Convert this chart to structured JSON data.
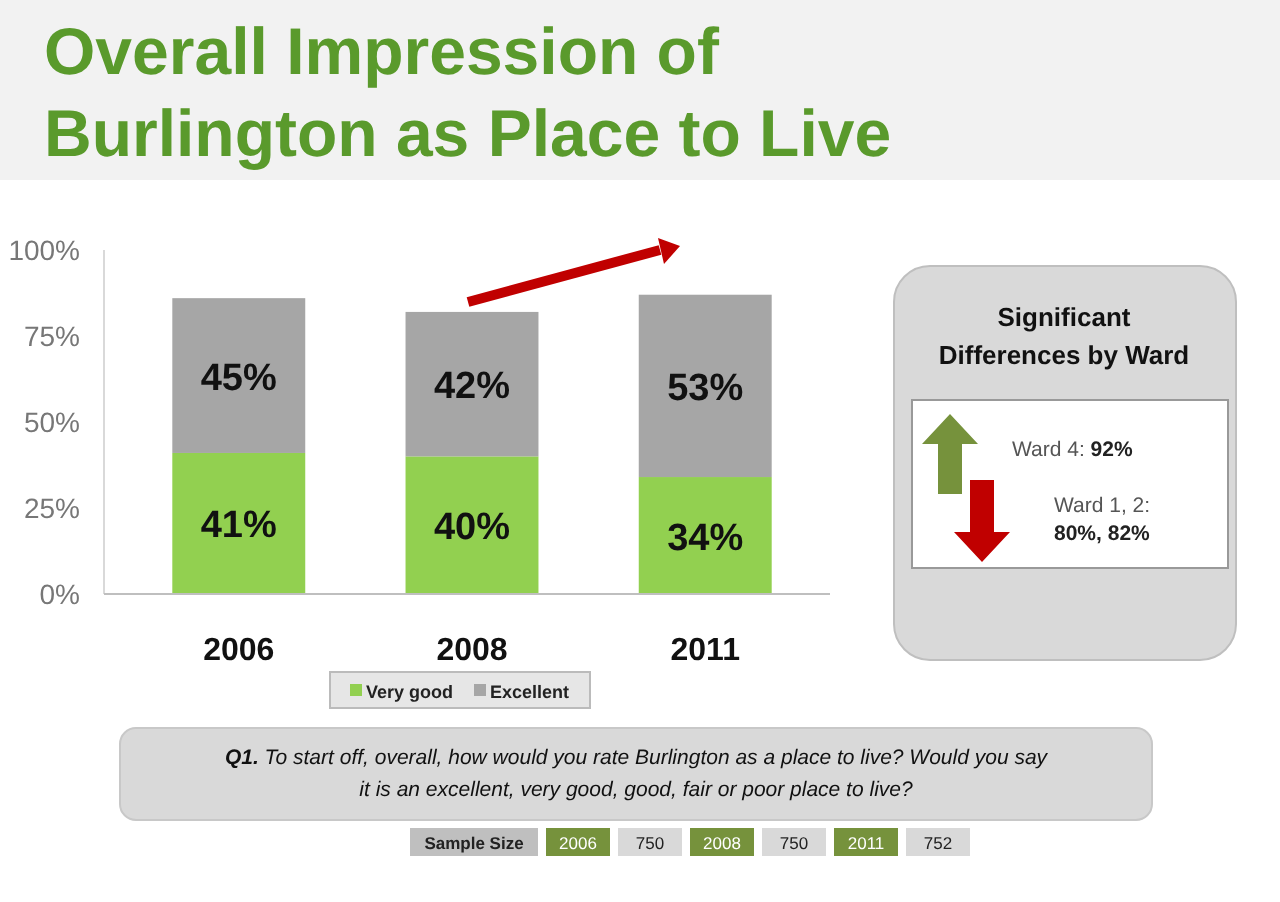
{
  "chart_data": {
    "type": "bar",
    "title": "Overall Impression of Burlington as Place to Live",
    "categories": [
      "2006",
      "2008",
      "2011"
    ],
    "series": [
      {
        "name": "Very good",
        "color": "#92d050",
        "values": [
          41,
          40,
          34
        ],
        "value_labels": [
          "41%",
          "40%",
          "34%"
        ]
      },
      {
        "name": "Excellent",
        "color": "#a6a6a6",
        "values": [
          45,
          42,
          53
        ],
        "value_labels": [
          "45%",
          "42%",
          "53%"
        ]
      }
    ],
    "stacked": true,
    "legend": "bottom",
    "grid": false,
    "ylim": [
      0,
      100
    ],
    "yticks": [
      {
        "value": 0,
        "label": "0%"
      },
      {
        "value": 25,
        "label": "25%"
      },
      {
        "value": 50,
        "label": "50%"
      },
      {
        "value": 75,
        "label": "75%"
      },
      {
        "value": 100,
        "label": "100%"
      }
    ],
    "annotations": [
      "Significant Differences by Ward",
      "Ward 4: 92%",
      "Ward 1, 2: 80%, 82%",
      "Q1. To start off, overall, how would you rate Burlington as a place to live? Would you say it is an excellent, very good, good, fair or poor place to live?",
      "Sample Size",
      "2006",
      "750",
      "2008",
      "750",
      "2011",
      "752"
    ]
  }
}
